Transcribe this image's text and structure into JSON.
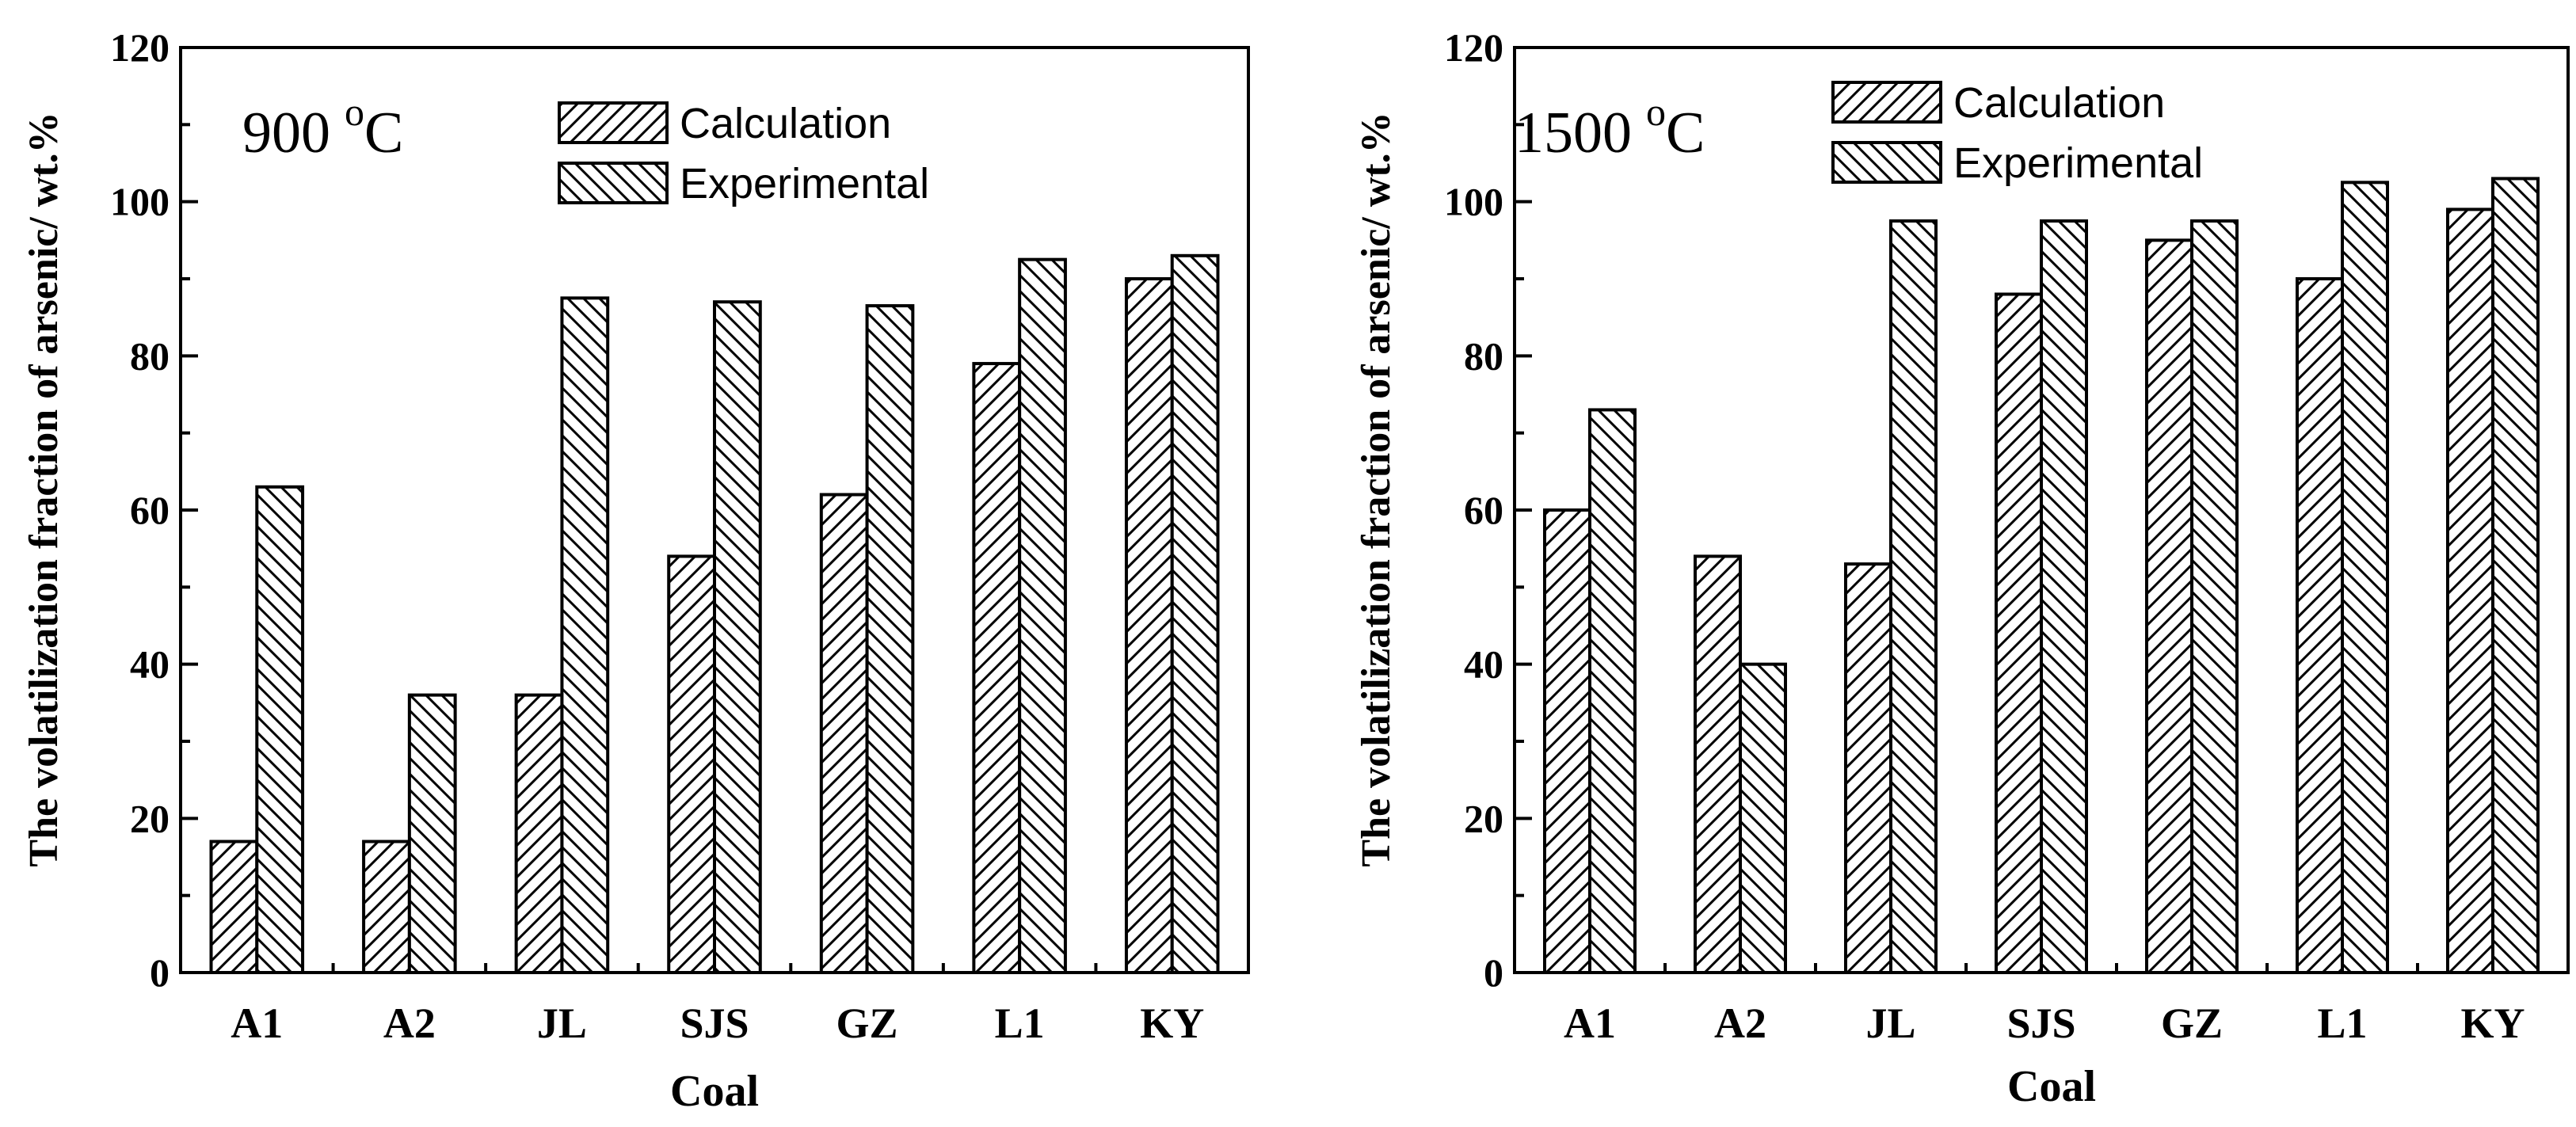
{
  "chart_data": [
    {
      "type": "bar",
      "title": "",
      "annotation": "900 °C",
      "annotation_value": "900",
      "annotation_degree": "o",
      "annotation_unit": "C",
      "xlabel": "Coal",
      "ylabel": "The volatilization fraction of arsenic/ wt.%",
      "ylim": [
        0,
        120
      ],
      "yticks": [
        "0",
        "20",
        "40",
        "60",
        "80",
        "100",
        "120"
      ],
      "grid": false,
      "legend_position": "top-center",
      "categories": [
        "A1",
        "A2",
        "JL",
        "SJS",
        "GZ",
        "L1",
        "KY"
      ],
      "series": [
        {
          "name": "Calculation",
          "pattern": "diagonal-up",
          "values": [
            17,
            17,
            36,
            54,
            62,
            79,
            90
          ]
        },
        {
          "name": "Experimental",
          "pattern": "diagonal-down",
          "values": [
            63,
            36,
            87.5,
            87,
            86.5,
            92.5,
            93
          ]
        }
      ]
    },
    {
      "type": "bar",
      "title": "",
      "annotation": "1500 °C",
      "annotation_value": "1500",
      "annotation_degree": "o",
      "annotation_unit": "C",
      "xlabel": "Coal",
      "ylabel": "The volatilization fraction of arsenic/ wt.%",
      "ylim": [
        0,
        120
      ],
      "yticks": [
        "0",
        "20",
        "40",
        "60",
        "80",
        "100",
        "120"
      ],
      "grid": false,
      "legend_position": "top-center",
      "categories": [
        "A1",
        "A2",
        "JL",
        "SJS",
        "GZ",
        "L1",
        "KY"
      ],
      "series": [
        {
          "name": "Calculation",
          "pattern": "diagonal-up",
          "values": [
            60,
            54,
            53,
            88,
            95,
            90,
            99
          ]
        },
        {
          "name": "Experimental",
          "pattern": "diagonal-down",
          "values": [
            73,
            40,
            97.5,
            97.5,
            97.5,
            102.5,
            103
          ]
        }
      ]
    }
  ]
}
